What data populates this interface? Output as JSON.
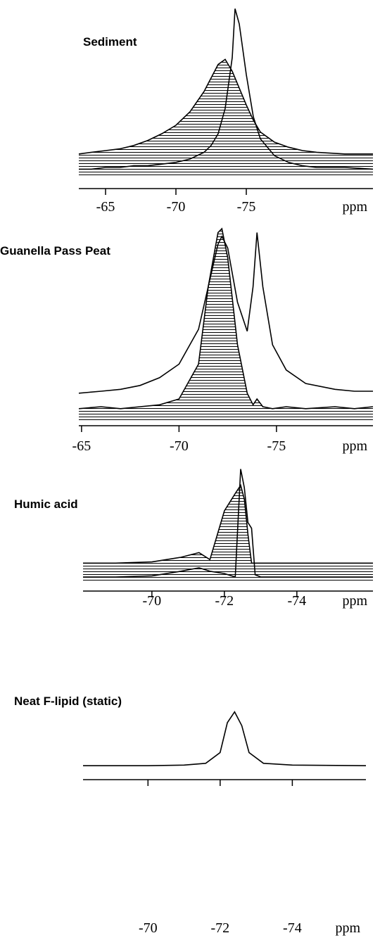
{
  "chart_data": [
    {
      "type": "line",
      "title": "Sediment",
      "xlabel": "ppm",
      "x": [
        -63.1,
        -64,
        -65,
        -66,
        -67,
        -68,
        -69,
        -70,
        -71,
        -72,
        -72.5,
        -73,
        -73.5,
        -74,
        -74.2,
        -74.5,
        -75,
        -75.5,
        -76,
        -77,
        -78,
        -79,
        -80,
        -82,
        -84
      ],
      "series": [
        {
          "color": "#000000",
          "fill": "hatched",
          "values": [
            13,
            14,
            15,
            16,
            18,
            21,
            25,
            30,
            38,
            50,
            58,
            66,
            69,
            62,
            58,
            52,
            42,
            33,
            26,
            20,
            17,
            15,
            14,
            13,
            13
          ]
        },
        {
          "color": "#000000",
          "fill": "none",
          "values": [
            4,
            4,
            5,
            5,
            6,
            6,
            7,
            8,
            10,
            14,
            18,
            25,
            40,
            70,
            99,
            90,
            60,
            35,
            22,
            12,
            8,
            6,
            5,
            5,
            4
          ]
        }
      ],
      "xlim": [
        -63.1,
        -84
      ],
      "ylim": [
        0,
        100
      ],
      "xticks": [
        -65,
        -70,
        -75
      ]
    },
    {
      "type": "line",
      "title": "Guanella Pass Peat",
      "xlabel": "ppm",
      "x": [
        -64.86,
        -66,
        -67,
        -68,
        -69,
        -70,
        -71,
        -71.5,
        -72,
        -72.2,
        -72.5,
        -73,
        -73.5,
        -73.8,
        -74,
        -74.3,
        -74.8,
        -75.5,
        -76.5,
        -78,
        -79,
        -79.95
      ],
      "series": [
        {
          "color": "#000000",
          "fill": "hatched",
          "values": [
            7,
            8,
            7,
            8,
            9,
            12,
            30,
            70,
            98,
            100,
            85,
            40,
            15,
            9,
            12,
            8,
            7,
            8,
            7,
            8,
            7,
            8
          ]
        },
        {
          "color": "#000000",
          "fill": "none",
          "values": [
            15,
            16,
            17,
            19,
            23,
            30,
            48,
            70,
            92,
            96,
            90,
            62,
            47,
            70,
            98,
            70,
            40,
            27,
            20,
            17,
            16,
            16
          ]
        }
      ],
      "xlim": [
        -64.86,
        -79.95
      ],
      "ylim": [
        0,
        100
      ],
      "xticks": [
        -65,
        -70,
        -75
      ]
    },
    {
      "type": "line",
      "title": "Humic acid",
      "xlabel": "ppm",
      "x": [
        -68.1,
        -69,
        -70,
        -70.8,
        -71.3,
        -71.6,
        -72,
        -72.3,
        -72.45,
        -72.55,
        -72.65,
        -72.75,
        -72.85,
        -73,
        -74,
        -75,
        -76.1
      ],
      "series": [
        {
          "color": "#000000",
          "fill": "hatched",
          "values": [
            15,
            15,
            16,
            20,
            24,
            18,
            60,
            75,
            82,
            70,
            40,
            15,
            15,
            15,
            15,
            15,
            15
          ]
        },
        {
          "color": "#000000",
          "fill": "none",
          "values": [
            3,
            3,
            4,
            8,
            11,
            8,
            6,
            3,
            96,
            80,
            50,
            45,
            5,
            3,
            3,
            3,
            3
          ]
        }
      ],
      "xlim": [
        -68.1,
        -76.1
      ],
      "ylim": [
        0,
        100
      ],
      "xticks": [
        -70,
        -72,
        -74
      ]
    },
    {
      "type": "line",
      "title": "Neat F-lipid (static)",
      "xlabel": "ppm",
      "x": [
        -68.2,
        -70,
        -71,
        -71.6,
        -72,
        -72.2,
        -72.4,
        -72.6,
        -72.8,
        -73.2,
        -74,
        -76.04
      ],
      "series": [
        {
          "color": "#000000",
          "fill": "none",
          "values": [
            8,
            8,
            9,
            12,
            30,
            80,
            98,
            75,
            30,
            12,
            9,
            8
          ]
        }
      ],
      "xlim": [
        -68.2,
        -76.04
      ],
      "ylim": [
        0,
        100
      ],
      "xticks": [
        -70,
        -72,
        -74
      ]
    }
  ]
}
